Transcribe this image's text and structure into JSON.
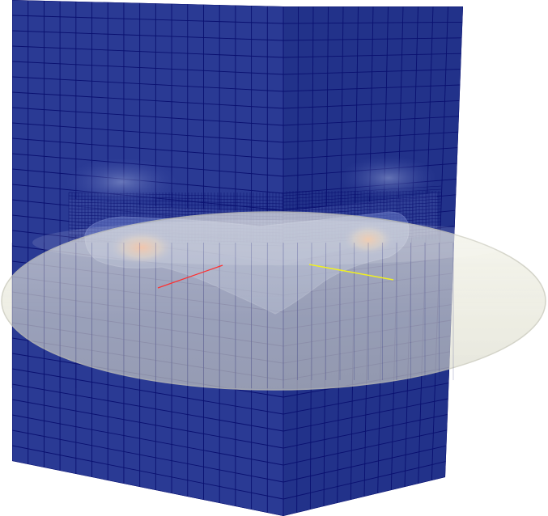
{
  "scene": {
    "background": "#ffffff",
    "mesh": {
      "face_color": "#2a3a94",
      "face_color_side": "#22328a",
      "edge_color": "#0a1070",
      "hot_color": "#e07040",
      "warm_color": "#d8b48a"
    },
    "ellipsoid": {
      "fill": "#e6e6d8",
      "opacity": 0.78,
      "edge_color": "#c9c9bb"
    },
    "axes": {
      "x_color": "#ff3030",
      "y_color": "#f0f020"
    }
  }
}
